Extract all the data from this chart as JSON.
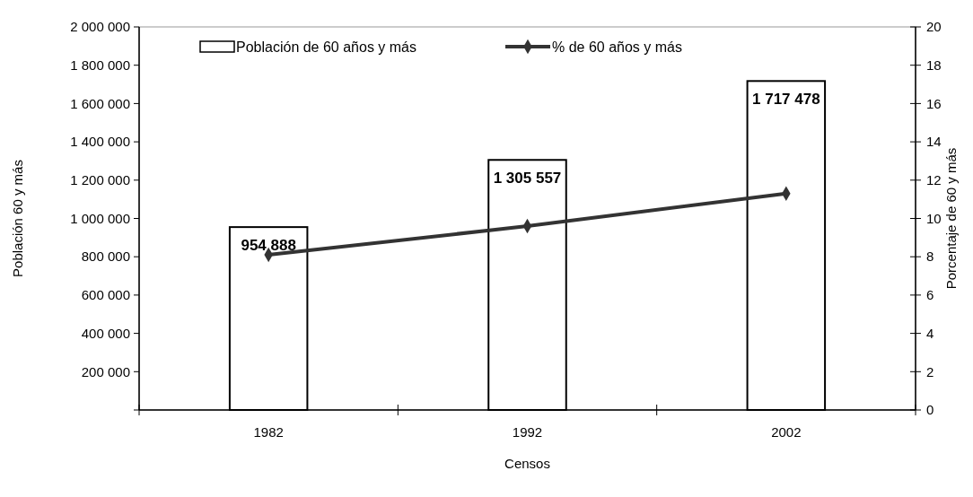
{
  "chart_data": {
    "type": "bar",
    "categories": [
      "1982",
      "1992",
      "2002"
    ],
    "xlabel": "Censos",
    "ylabel": "Población 60 y más",
    "y2label": "Porcentaje de 60 y más",
    "series": [
      {
        "name": "Población de 60 años y más",
        "color": "#ffffff",
        "values": [
          954888,
          1305557,
          1717478
        ],
        "value_labels": [
          "954 888",
          "1 305 557",
          "1 717 478"
        ]
      },
      {
        "name": "% de 60 años y más",
        "type": "line",
        "axis": "y2",
        "color": "#333333",
        "values": [
          8.1,
          9.6,
          11.3
        ]
      }
    ],
    "ylim": [
      0,
      2000000
    ],
    "yticks": [
      {
        "value": 0,
        "label": null
      },
      {
        "value": 200000,
        "label": "200 000"
      },
      {
        "value": 400000,
        "label": "400 000"
      },
      {
        "value": 600000,
        "label": "600 000"
      },
      {
        "value": 800000,
        "label": "800 000"
      },
      {
        "value": 1000000,
        "label": "1 000 000"
      },
      {
        "value": 1200000,
        "label": "1 200 000"
      },
      {
        "value": 1400000,
        "label": "1 400 000"
      },
      {
        "value": 1600000,
        "label": "1 600 000"
      },
      {
        "value": 1800000,
        "label": "1 800 000"
      },
      {
        "value": 2000000,
        "label": "2 000 000"
      }
    ],
    "y2lim": [
      0,
      20
    ],
    "y2ticks": [
      0,
      2,
      4,
      6,
      8,
      10,
      12,
      14,
      16,
      18,
      20
    ],
    "marker": "diamond",
    "legend": "top",
    "grid": false
  }
}
